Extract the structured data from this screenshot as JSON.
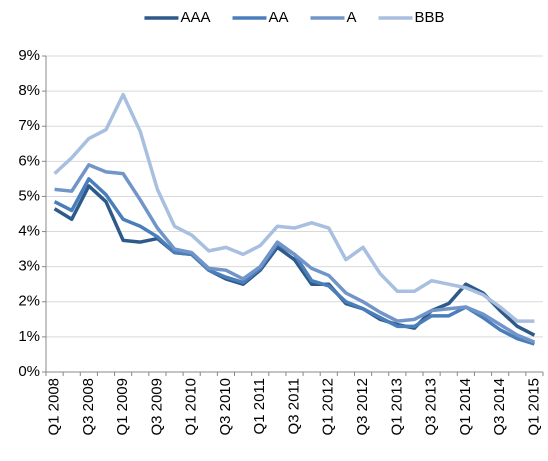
{
  "chart_data": {
    "type": "line",
    "categories": [
      "Q1 2008",
      null,
      "Q3 2008",
      null,
      "Q1 2009",
      null,
      "Q3 2009",
      null,
      "Q1 2010",
      null,
      "Q3 2010",
      null,
      "Q1 2011",
      null,
      "Q3 2011",
      null,
      "Q1 2012",
      null,
      "Q3 2012",
      null,
      "Q1 2013",
      null,
      "Q3 2013",
      null,
      "Q1 2014",
      null,
      "Q3 2014",
      null,
      "Q1 2015"
    ],
    "series": [
      {
        "name": "AAA",
        "color": "#2e5a8a",
        "values": [
          4.65,
          4.35,
          5.3,
          4.85,
          3.75,
          3.7,
          3.8,
          3.4,
          3.35,
          2.9,
          2.65,
          2.5,
          2.9,
          3.55,
          3.2,
          2.5,
          2.5,
          1.95,
          1.8,
          1.5,
          1.35,
          1.25,
          1.75,
          1.95,
          2.5,
          2.25,
          1.75,
          1.3,
          1.05
        ]
      },
      {
        "name": "AA",
        "color": "#4a7ebb",
        "values": [
          4.85,
          4.6,
          5.5,
          5.05,
          4.35,
          4.15,
          3.85,
          3.4,
          3.35,
          2.9,
          2.7,
          2.55,
          2.95,
          3.65,
          3.35,
          2.6,
          2.45,
          2.0,
          1.8,
          1.55,
          1.3,
          1.3,
          1.6,
          1.6,
          1.85,
          1.55,
          1.2,
          0.95,
          0.8
        ]
      },
      {
        "name": "A",
        "color": "#7195c9",
        "values": [
          5.2,
          5.15,
          5.9,
          5.7,
          5.65,
          4.9,
          4.1,
          3.5,
          3.4,
          2.95,
          2.9,
          2.65,
          3.0,
          3.7,
          3.35,
          2.95,
          2.75,
          2.25,
          2.0,
          1.7,
          1.45,
          1.5,
          1.75,
          1.8,
          1.85,
          1.65,
          1.35,
          1.05,
          0.85
        ]
      },
      {
        "name": "BBB",
        "color": "#a8bfdf",
        "values": [
          5.65,
          6.1,
          6.65,
          6.9,
          7.9,
          6.85,
          5.2,
          4.15,
          3.9,
          3.45,
          3.55,
          3.35,
          3.6,
          4.15,
          4.1,
          4.25,
          4.1,
          3.2,
          3.55,
          2.8,
          2.3,
          2.3,
          2.6,
          2.5,
          2.4,
          2.2,
          1.85,
          1.45,
          1.45
        ]
      }
    ],
    "ylim": [
      0,
      9
    ],
    "yticks": [
      {
        "value": 0,
        "label": "0%"
      },
      {
        "value": 1,
        "label": "1%"
      },
      {
        "value": 2,
        "label": "2%"
      },
      {
        "value": 3,
        "label": "3%"
      },
      {
        "value": 4,
        "label": "4%"
      },
      {
        "value": 5,
        "label": "5%"
      },
      {
        "value": 6,
        "label": "6%"
      },
      {
        "value": 7,
        "label": "7%"
      },
      {
        "value": 8,
        "label": "8%"
      },
      {
        "value": 9,
        "label": "9%"
      }
    ],
    "grid": true,
    "legend": "top"
  }
}
